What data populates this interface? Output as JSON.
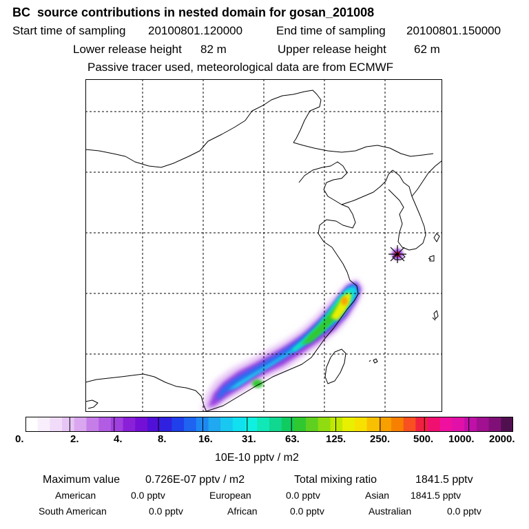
{
  "header": {
    "title": "BC  source contributions in nested domain for gosan_201008",
    "start_label": "Start time of sampling",
    "start_value": "20100801.120000",
    "end_label": "End time of sampling",
    "end_value": "20100801.150000",
    "lower_label": "Lower release height",
    "lower_value": "82 m",
    "upper_label": "Upper release height",
    "upper_value": "62 m",
    "note": "Passive tracer used, meteorological data are from ECMWF"
  },
  "colorbar": {
    "ticks": [
      "0.",
      "2.",
      "4.",
      "8.",
      "16.",
      "31.",
      "63.",
      "125.",
      "250.",
      "500.",
      "1000.",
      "2000."
    ],
    "unit": "10E-10 pptv / m2",
    "colors": [
      "#ffffff",
      "#f8eefc",
      "#f0dcf8",
      "#e6c4f4",
      "#d9a6ef",
      "#c57ee8",
      "#b25ce3",
      "#a040de",
      "#8a20d8",
      "#7410d6",
      "#5010d8",
      "#3020e0",
      "#2040ec",
      "#1e64f0",
      "#1e88f2",
      "#20a8f0",
      "#18c8f0",
      "#10e0f0",
      "#10f0e0",
      "#10e8b8",
      "#10d890",
      "#10cc60",
      "#30c830",
      "#60d020",
      "#90dc10",
      "#c0e800",
      "#e8f000",
      "#f8e000",
      "#f8c000",
      "#f8a000",
      "#f88000",
      "#f85020",
      "#f02040",
      "#f01070",
      "#f010a0",
      "#e010a8",
      "#c010a8",
      "#a01090",
      "#801078",
      "#501050"
    ]
  },
  "summary": {
    "max_label": "Maximum value",
    "max_value": "0.726E-07 pptv / m2",
    "total_label": "Total mixing ratio",
    "total_value": "1841.5 pptv",
    "sources": [
      {
        "name": "American",
        "value": "0.0 pptv"
      },
      {
        "name": "European",
        "value": "0.0 pptv"
      },
      {
        "name": "Asian",
        "value": "1841.5 pptv"
      },
      {
        "name": "South American",
        "value": "0.0 pptv"
      },
      {
        "name": "African",
        "value": "0.0 pptv"
      },
      {
        "name": "Australian",
        "value": "0.0 pptv"
      }
    ]
  },
  "map": {
    "receptor_marker": "receptor-star-icon",
    "plume_colors": {
      "outer": "#e6c4f4",
      "violet": "#9a40e0",
      "blue": "#2a6cf0",
      "cyan": "#18d0f0",
      "teal": "#10e0c8",
      "green": "#30c830",
      "yellow": "#e8f000",
      "orange": "#f8a000",
      "red": "#f02040"
    }
  }
}
